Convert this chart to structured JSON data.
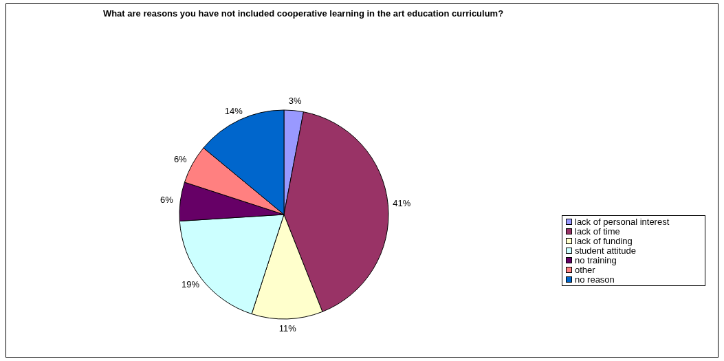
{
  "chart_data": {
    "type": "pie",
    "title": "What are reasons you have not included cooperative learning in the art education curriculum?",
    "categories": [
      "lack of personal interest",
      "lack of time",
      "lack of funding",
      "student attitude",
      "no training",
      "other",
      "no reason"
    ],
    "values": [
      3,
      41,
      11,
      19,
      6,
      6,
      14
    ],
    "colors": [
      "#9999ff",
      "#993366",
      "#ffffcc",
      "#ccffff",
      "#660066",
      "#ff8080",
      "#0066cc"
    ],
    "value_labels": [
      "3%",
      "41%",
      "11%",
      "19%",
      "6%",
      "6%",
      "14%"
    ],
    "legend": "right"
  }
}
